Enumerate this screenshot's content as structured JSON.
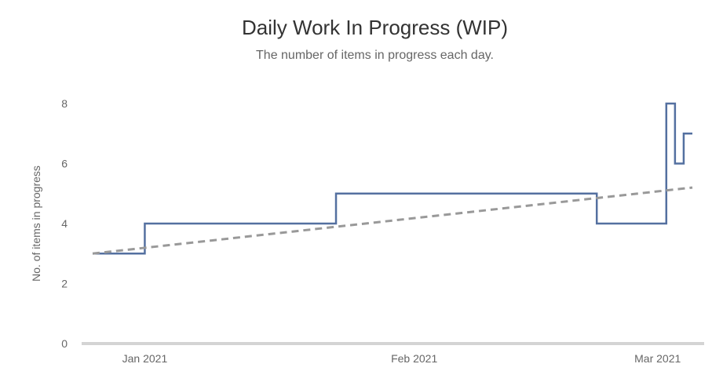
{
  "chart_data": {
    "type": "line",
    "title": "Daily Work In Progress (WIP)",
    "subtitle": "The number of items in progress each day.",
    "ylabel": "No. of items in progress",
    "ylim": [
      0,
      8
    ],
    "y_ticks": [
      "0",
      "2",
      "4",
      "6",
      "8"
    ],
    "x_ticks": [
      {
        "label": "Jan 2021",
        "date": "2021-01-01"
      },
      {
        "label": "Feb 2021",
        "date": "2021-02-01"
      },
      {
        "label": "Mar 2021",
        "date": "2021-03-01"
      }
    ],
    "grid": false,
    "legend": "none",
    "series": [
      {
        "style": "step",
        "color": "#5470a0",
        "points": [
          {
            "date": "2020-12-26",
            "value": 3
          },
          {
            "date": "2021-01-01",
            "value": 4
          },
          {
            "date": "2021-01-19",
            "value": 4
          },
          {
            "date": "2021-01-23",
            "value": 5
          },
          {
            "date": "2021-02-22",
            "value": 4
          },
          {
            "date": "2021-03-02",
            "value": 8
          },
          {
            "date": "2021-03-03",
            "value": 6
          },
          {
            "date": "2021-03-04",
            "value": 7
          },
          {
            "date": "2021-03-05",
            "value": 7
          }
        ]
      },
      {
        "style": "dashed-trend",
        "color": "#999999",
        "points": [
          {
            "date": "2020-12-26",
            "value": 3
          },
          {
            "date": "2021-03-05",
            "value": 5.2
          }
        ]
      }
    ]
  }
}
